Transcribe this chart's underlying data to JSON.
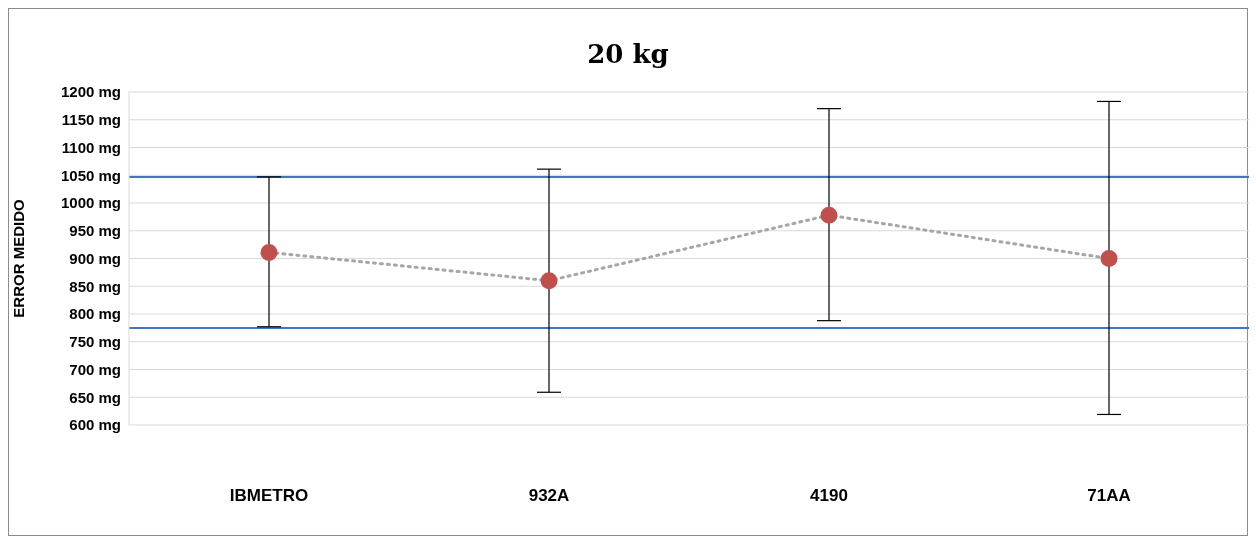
{
  "chart_data": {
    "type": "line",
    "title": "20 kg",
    "ylabel": "ERROR MEDIDO",
    "categories": [
      "IBMETRO",
      "932A",
      "4190",
      "71AA"
    ],
    "series": [
      {
        "color": "#c0504d",
        "values": [
          911,
          860,
          978,
          900
        ],
        "errors": [
          [
            777,
            1047
          ],
          [
            659,
            1061
          ],
          [
            788,
            1170
          ],
          [
            619,
            1183
          ]
        ]
      }
    ],
    "ylim": [
      600,
      1200
    ],
    "yticks": [
      {
        "value": 600,
        "label": "600 mg"
      },
      {
        "value": 650,
        "label": "650 mg"
      },
      {
        "value": 700,
        "label": "700 mg"
      },
      {
        "value": 750,
        "label": "750 mg"
      },
      {
        "value": 800,
        "label": "800 mg"
      },
      {
        "value": 850,
        "label": "850 mg"
      },
      {
        "value": 900,
        "label": "900 mg"
      },
      {
        "value": 950,
        "label": "950 mg"
      },
      {
        "value": 1000,
        "label": "1000 mg"
      },
      {
        "value": 1050,
        "label": "1050 mg"
      },
      {
        "value": 1100,
        "label": "1100 mg"
      },
      {
        "value": 1150,
        "label": "1150 mg"
      },
      {
        "value": 1200,
        "label": "1200 mg"
      }
    ],
    "ref_lines": [
      {
        "axis": "y",
        "value": 1047,
        "color": "#4472c4"
      },
      {
        "axis": "y",
        "value": 775,
        "color": "#4472c4"
      }
    ],
    "grid": "y",
    "legend": false,
    "marker": "circle",
    "line_style": "dotted"
  }
}
